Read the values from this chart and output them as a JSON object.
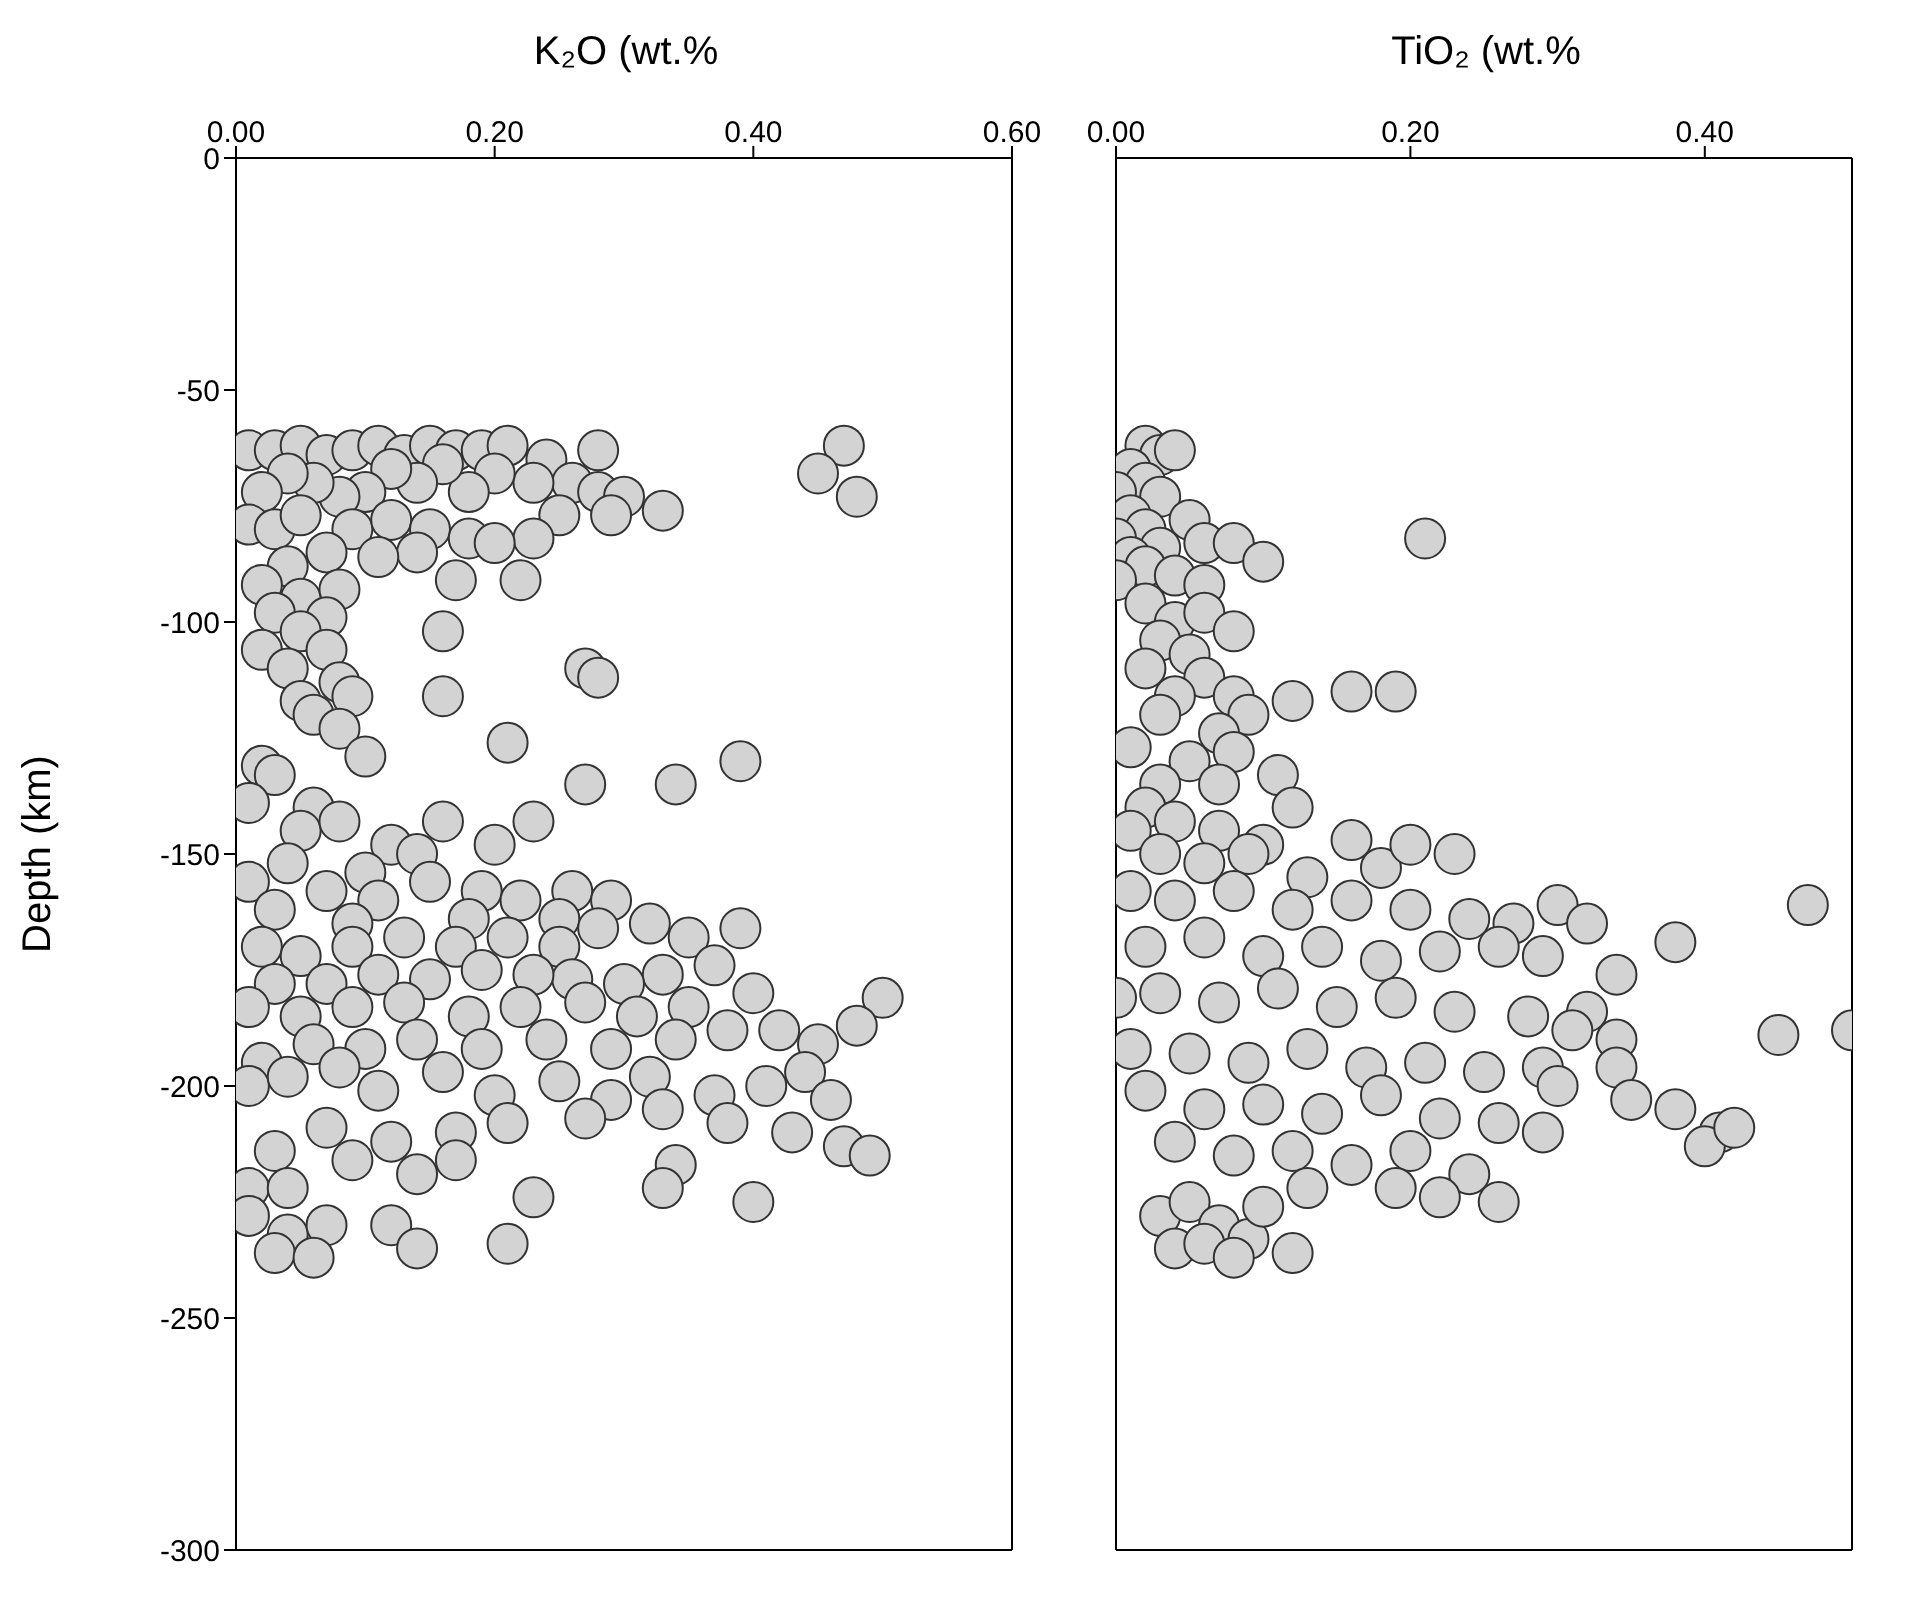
{
  "chart_data": [
    {
      "type": "scatter",
      "xlabel": "K₂O (wt.%",
      "ylabel": "Depth (km)",
      "xlim": [
        0,
        0.6
      ],
      "xticks": [
        {
          "value": 0,
          "label": "0.00"
        },
        {
          "value": 0.2,
          "label": "0.20"
        },
        {
          "value": 0.4,
          "label": "0.40"
        },
        {
          "value": 0.6,
          "label": "0.60"
        }
      ],
      "ylim": [
        -300,
        0
      ],
      "yticks": [
        -300,
        -250,
        -200,
        -150,
        -100,
        -50,
        0
      ],
      "marker": "circle",
      "series": [
        {
          "color": "#d3d3d3",
          "x": [
            0.01,
            0.03,
            0.05,
            0.07,
            0.09,
            0.11,
            0.13,
            0.15,
            0.17,
            0.19,
            0.21,
            0.24,
            0.28,
            0.26,
            0.28,
            0.3,
            0.29,
            0.25,
            0.23,
            0.2,
            0.18,
            0.16,
            0.14,
            0.12,
            0.1,
            0.08,
            0.06,
            0.04,
            0.02,
            0.01,
            0.03,
            0.05,
            0.09,
            0.12,
            0.15,
            0.18,
            0.23,
            0.2,
            0.17,
            0.14,
            0.11,
            0.07,
            0.04,
            0.02,
            0.05,
            0.08,
            0.03,
            0.07,
            0.05,
            0.02,
            0.04,
            0.07,
            0.08,
            0.05,
            0.09,
            0.06,
            0.08,
            0.47,
            0.45,
            0.48,
            0.33,
            0.22,
            0.16,
            0.27,
            0.28,
            0.16,
            0.21,
            0.27,
            0.34,
            0.39,
            0.1,
            0.02,
            0.03,
            0.01,
            0.06,
            0.05,
            0.08,
            0.12,
            0.16,
            0.2,
            0.23,
            0.14,
            0.04,
            0.1,
            0.01,
            0.03,
            0.07,
            0.11,
            0.15,
            0.19,
            0.22,
            0.26,
            0.29,
            0.25,
            0.18,
            0.09,
            0.02,
            0.05,
            0.09,
            0.13,
            0.17,
            0.21,
            0.25,
            0.28,
            0.32,
            0.35,
            0.39,
            0.37,
            0.33,
            0.3,
            0.26,
            0.23,
            0.19,
            0.15,
            0.11,
            0.07,
            0.03,
            0.01,
            0.05,
            0.09,
            0.13,
            0.18,
            0.22,
            0.27,
            0.31,
            0.35,
            0.4,
            0.38,
            0.42,
            0.5,
            0.48,
            0.45,
            0.34,
            0.29,
            0.24,
            0.19,
            0.14,
            0.1,
            0.06,
            0.02,
            0.01,
            0.04,
            0.08,
            0.11,
            0.16,
            0.2,
            0.25,
            0.29,
            0.32,
            0.37,
            0.41,
            0.44,
            0.46,
            0.43,
            0.47,
            0.49,
            0.38,
            0.33,
            0.27,
            0.21,
            0.17,
            0.12,
            0.07,
            0.03,
            0.01,
            0.04,
            0.09,
            0.14,
            0.17,
            0.01,
            0.04,
            0.07,
            0.03,
            0.06,
            0.12,
            0.14,
            0.21,
            0.23,
            0.34,
            0.33,
            0.4
          ],
          "values": [
            -63,
            -63,
            -62,
            -64,
            -63,
            -62,
            -64,
            -62,
            -63,
            -63,
            -62,
            -65,
            -63,
            -70,
            -72,
            -73,
            -77,
            -77,
            -70,
            -68,
            -72,
            -66,
            -70,
            -67,
            -72,
            -73,
            -70,
            -68,
            -72,
            -79,
            -80,
            -77,
            -80,
            -78,
            -80,
            -82,
            -82,
            -83,
            -91,
            -85,
            -86,
            -85,
            -88,
            -92,
            -95,
            -93,
            -98,
            -99,
            -102,
            -106,
            -110,
            -106,
            -113,
            -117,
            -116,
            -120,
            -123,
            -62,
            -68,
            -73,
            -76,
            -91,
            -102,
            -110,
            -112,
            -116,
            -126,
            -135,
            -135,
            -130,
            -129,
            -131,
            -133,
            -139,
            -140,
            -145,
            -143,
            -148,
            -143,
            -148,
            -143,
            -150,
            -152,
            -154,
            -156,
            -162,
            -158,
            -160,
            -156,
            -158,
            -160,
            -158,
            -160,
            -164,
            -164,
            -165,
            -170,
            -172,
            -170,
            -168,
            -170,
            -168,
            -170,
            -166,
            -165,
            -168,
            -166,
            -174,
            -176,
            -178,
            -177,
            -176,
            -175,
            -177,
            -176,
            -178,
            -178,
            -183,
            -185,
            -183,
            -182,
            -185,
            -183,
            -182,
            -185,
            -183,
            -180,
            -188,
            -188,
            -181,
            -187,
            -191,
            -190,
            -192,
            -190,
            -192,
            -190,
            -192,
            -191,
            -195,
            -200,
            -198,
            -196,
            -201,
            -197,
            -202,
            -199,
            -203,
            -198,
            -202,
            -200,
            -197,
            -203,
            -210,
            -213,
            -215,
            -208,
            -205,
            -207,
            -208,
            -210,
            -212,
            -209,
            -214,
            -222,
            -222,
            -216,
            -219,
            -216,
            -228,
            -232,
            -230,
            -236,
            -237,
            -230,
            -235,
            -234,
            -224,
            -217,
            -222,
            -225
          ]
        }
      ]
    },
    {
      "type": "scatter",
      "xlabel": "TiO₂ (wt.%",
      "xlim": [
        0,
        0.5
      ],
      "xticks": [
        {
          "value": 0,
          "label": "0.00"
        },
        {
          "value": 0.2,
          "label": "0.20"
        },
        {
          "value": 0.4,
          "label": "0.40"
        }
      ],
      "ylim": [
        -300,
        0
      ],
      "yticks": [
        -300,
        -250,
        -200,
        -150,
        -100,
        -50,
        0
      ],
      "tick_labels": "x",
      "marker": "circle",
      "series": [
        {
          "color": "#d3d3d3",
          "x": [
            0.02,
            0.03,
            0.04,
            0.01,
            0.02,
            0.0,
            0.03,
            0.01,
            0.02,
            0.0,
            0.03,
            0.01,
            0.02,
            0.0,
            0.04,
            0.05,
            0.06,
            0.08,
            0.1,
            0.06,
            0.21,
            0.02,
            0.04,
            0.06,
            0.08,
            0.03,
            0.05,
            0.02,
            0.06,
            0.04,
            0.08,
            0.12,
            0.16,
            0.19,
            0.09,
            0.03,
            0.07,
            0.01,
            0.05,
            0.08,
            0.03,
            0.07,
            0.11,
            0.02,
            0.01,
            0.04,
            0.07,
            0.1,
            0.12,
            0.16,
            0.03,
            0.06,
            0.09,
            0.13,
            0.18,
            0.2,
            0.23,
            0.01,
            0.04,
            0.08,
            0.12,
            0.16,
            0.2,
            0.24,
            0.27,
            0.3,
            0.32,
            0.47,
            0.02,
            0.06,
            0.1,
            0.14,
            0.18,
            0.22,
            0.26,
            0.29,
            0.38,
            0.34,
            0.0,
            0.03,
            0.07,
            0.11,
            0.15,
            0.19,
            0.23,
            0.28,
            0.32,
            0.34,
            0.31,
            0.45,
            0.5,
            0.01,
            0.05,
            0.09,
            0.13,
            0.17,
            0.21,
            0.25,
            0.29,
            0.34,
            0.3,
            0.35,
            0.38,
            0.02,
            0.06,
            0.1,
            0.14,
            0.18,
            0.22,
            0.26,
            0.29,
            0.41,
            0.4,
            0.42,
            0.04,
            0.08,
            0.12,
            0.16,
            0.2,
            0.24,
            0.19,
            0.22,
            0.26,
            0.13,
            0.03,
            0.05,
            0.07,
            0.04,
            0.06,
            0.09,
            0.12,
            0.08,
            0.1
          ],
          "values": [
            -62,
            -64,
            -63,
            -67,
            -70,
            -72,
            -73,
            -77,
            -80,
            -82,
            -84,
            -86,
            -88,
            -91,
            -90,
            -78,
            -83,
            -83,
            -87,
            -92,
            -82,
            -96,
            -100,
            -98,
            -102,
            -104,
            -107,
            -110,
            -112,
            -116,
            -116,
            -117,
            -115,
            -115,
            -120,
            -120,
            -124,
            -127,
            -130,
            -128,
            -135,
            -135,
            -133,
            -140,
            -145,
            -143,
            -145,
            -148,
            -140,
            -147,
            -150,
            -152,
            -150,
            -155,
            -153,
            -148,
            -150,
            -158,
            -160,
            -158,
            -162,
            -160,
            -162,
            -164,
            -165,
            -161,
            -165,
            -161,
            -170,
            -168,
            -172,
            -170,
            -173,
            -171,
            -170,
            -172,
            -169,
            -176,
            -181,
            -180,
            -182,
            -179,
            -183,
            -181,
            -184,
            -185,
            -184,
            -190,
            -188,
            -189,
            -188,
            -192,
            -193,
            -195,
            -192,
            -196,
            -195,
            -197,
            -196,
            -196,
            -200,
            -203,
            -205,
            -201,
            -205,
            -204,
            -206,
            -202,
            -207,
            -208,
            -210,
            -210,
            -213,
            -209,
            -212,
            -215,
            -214,
            -217,
            -214,
            -219,
            -222,
            -224,
            -225,
            -222,
            -228,
            -225,
            -230,
            -235,
            -234,
            -233,
            -236,
            -237,
            -226
          ]
        }
      ]
    }
  ]
}
